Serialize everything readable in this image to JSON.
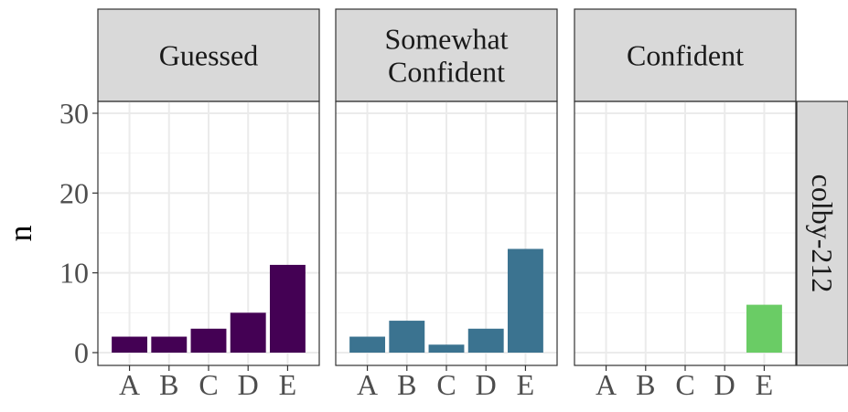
{
  "chart_data": {
    "type": "bar",
    "facet_row_label": "colby-212",
    "ylabel": "n",
    "xlabel": "",
    "ylim": [
      0,
      31
    ],
    "y_ticks": [
      0,
      10,
      20,
      30
    ],
    "categories": [
      "A",
      "B",
      "C",
      "D",
      "E"
    ],
    "grid": true,
    "legend": "none",
    "panels": [
      {
        "label": "Guessed",
        "color": "#440154",
        "values": [
          2,
          2,
          3,
          5,
          11
        ]
      },
      {
        "label": "Somewhat Confident",
        "label_lines": [
          "Somewhat",
          "Confident"
        ],
        "color": "#3B7390",
        "values": [
          2,
          4,
          1,
          3,
          13
        ]
      },
      {
        "label": "Confident",
        "color": "#6ACC65",
        "values": [
          0,
          0,
          0,
          0,
          6
        ]
      }
    ]
  }
}
